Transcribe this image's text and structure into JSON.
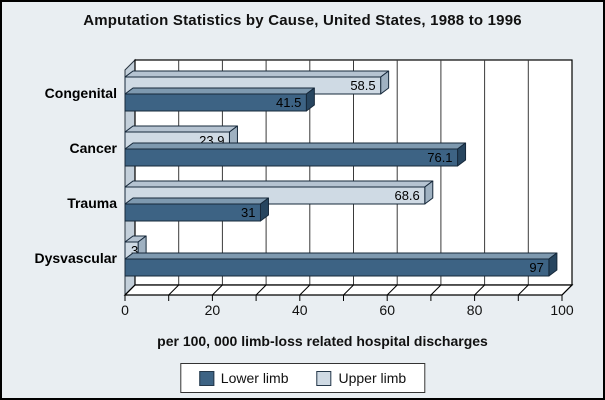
{
  "chart_data": {
    "type": "bar",
    "orientation": "horizontal",
    "style": "3d",
    "title": "Amputation Statistics by Cause, United States, 1988 to 1996",
    "xlabel": "per 100, 000 limb-loss related hospital discharges",
    "categories": [
      "Congenital",
      "Cancer",
      "Trauma",
      "Dysvascular"
    ],
    "series": [
      {
        "name": "Lower limb",
        "color": "#3d6384",
        "values": [
          41.5,
          76.1,
          31,
          97
        ]
      },
      {
        "name": "Upper limb",
        "color": "#cfdae4",
        "values": [
          58.5,
          23.9,
          68.6,
          3
        ]
      }
    ],
    "value_labels": {
      "Congenital": {
        "Lower limb": "41.5",
        "Upper limb": "58.5"
      },
      "Cancer": {
        "Lower limb": "76.1",
        "Upper limb": "23.9"
      },
      "Trauma": {
        "Lower limb": "31",
        "Upper limb": "68.6"
      },
      "Dysvascular": {
        "Lower limb": "97",
        "Upper limb": "3"
      }
    },
    "xlim": [
      0,
      100
    ],
    "xticks": [
      0,
      20,
      40,
      60,
      80,
      100
    ],
    "minor_xticks": [
      10,
      30,
      50,
      70,
      90
    ],
    "grid": true,
    "grid_interval": 10,
    "legend_position": "bottom",
    "plot_background": "#ffffff",
    "page_background": "#e9eef2"
  }
}
